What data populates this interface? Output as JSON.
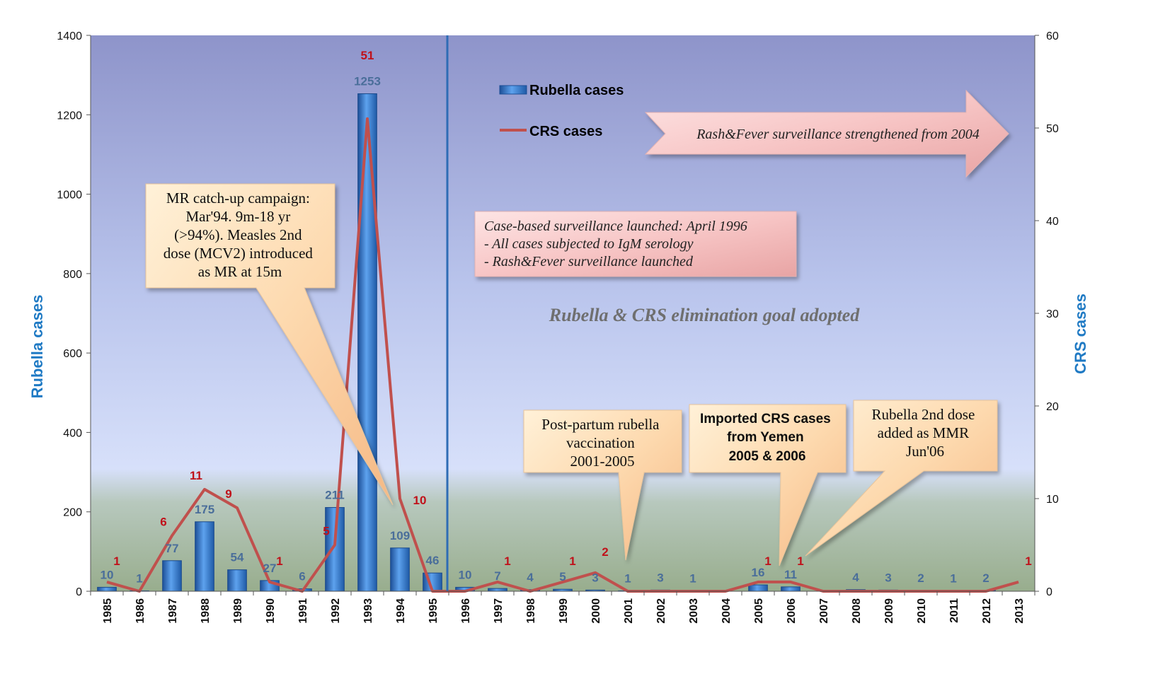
{
  "chart_data": {
    "type": "bar",
    "categories": [
      "1985",
      "1986",
      "1987",
      "1988",
      "1989",
      "1990",
      "1991",
      "1992",
      "1993",
      "1994",
      "1995",
      "1996",
      "1997",
      "1998",
      "1999",
      "2000",
      "2001",
      "2002",
      "2003",
      "2004",
      "2005",
      "2006",
      "2007",
      "2008",
      "2009",
      "2010",
      "2011",
      "2012",
      "2013"
    ],
    "series": [
      {
        "name": "Rubella cases",
        "type": "bar",
        "axis": "left",
        "values": [
          10,
          1,
          77,
          175,
          54,
          27,
          6,
          211,
          1253,
          109,
          46,
          10,
          7,
          4,
          5,
          3,
          1,
          3,
          1,
          0,
          16,
          11,
          0,
          4,
          3,
          2,
          1,
          2,
          0
        ],
        "labels": [
          "10",
          "1",
          "77",
          "175",
          "54",
          "27",
          "6",
          "211",
          "1253",
          "109",
          "46",
          "10",
          "7",
          "4",
          "5",
          "3",
          "1",
          "3",
          "1",
          "",
          "16",
          "11",
          "",
          "4",
          "3",
          "2",
          "1",
          "2",
          ""
        ]
      },
      {
        "name": "CRS cases",
        "type": "line",
        "axis": "right",
        "values": [
          1,
          0,
          6,
          11,
          9,
          1,
          0,
          5,
          51,
          10,
          0,
          0,
          1,
          0,
          1,
          2,
          0,
          0,
          0,
          0,
          1,
          1,
          0,
          0,
          0,
          0,
          0,
          0,
          1
        ],
        "labels": [
          "1",
          "",
          "6",
          "11",
          "9",
          "1",
          "",
          "5",
          "51",
          "10",
          "",
          "",
          "1",
          "",
          "1",
          "2",
          "",
          "",
          "",
          "",
          "1",
          "1",
          "",
          "",
          "",
          "",
          "",
          "",
          "1"
        ]
      }
    ],
    "ylabel": "Rubella  cases",
    "y2label": "CRS cases",
    "ylim": [
      0,
      1400
    ],
    "y2lim": [
      0,
      60
    ],
    "yticks": [
      "0",
      "200",
      "400",
      "600",
      "800",
      "1000",
      "1200",
      "1400"
    ],
    "y2ticks": [
      "0",
      "10",
      "20",
      "30",
      "40",
      "50",
      "60"
    ],
    "vline_after": "1995",
    "legend_position": "top-center",
    "colors": {
      "bar": "#2f76c9",
      "line": "#c0504d",
      "vline": "#2e6cb5",
      "axis_title": "#1f7ac4"
    }
  },
  "annotations": {
    "mr_campaign": [
      "MR catch-up campaign:",
      "Mar'94. 9m-18 yr",
      "(>94%). Measles 2nd",
      "dose (MCV2) introduced",
      "as MR at 15m"
    ],
    "case_based": [
      "Case-based surveillance launched: April 1996",
      "- All cases subjected to IgM serology",
      "- Rash&Fever surveillance launched"
    ],
    "rash_fever": "Rash&Fever surveillance strengthened  from 2004",
    "goal": "Rubella & CRS elimination goal adopted",
    "post_partum": [
      "Post-partum rubella",
      "vaccination",
      "2001-2005"
    ],
    "imported": [
      "Imported CRS cases",
      "from Yemen",
      "2005 & 2006"
    ],
    "second_dose": [
      "Rubella 2nd dose",
      "added as MMR",
      "Jun'06"
    ]
  }
}
